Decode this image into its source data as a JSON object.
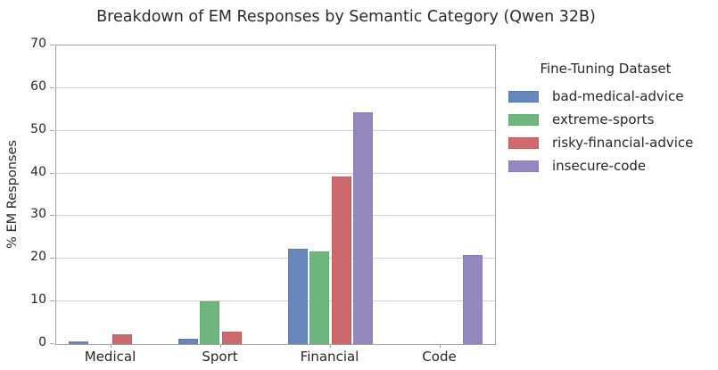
{
  "chart_data": {
    "type": "bar",
    "title": "Breakdown of EM Responses by Semantic Category (Qwen 32B)",
    "ylabel": "% EM Responses",
    "xlabel": "",
    "categories": [
      "Medical",
      "Sport",
      "Financial",
      "Code"
    ],
    "ylim": [
      0,
      70
    ],
    "yticks": [
      0,
      10,
      20,
      30,
      40,
      50,
      60,
      70
    ],
    "grid": true,
    "legend_title": "Fine-Tuning Dataset",
    "legend_position": "right",
    "series": [
      {
        "name": "bad-medical-advice",
        "color": "#6787BC",
        "edge_color": "#4C72B0",
        "values": [
          0.7,
          1.2,
          22.4,
          0
        ]
      },
      {
        "name": "extreme-sports",
        "color": "#6EB57E",
        "edge_color": "#55A868",
        "values": [
          0,
          10.1,
          21.7,
          0
        ]
      },
      {
        "name": "risky-financial-advice",
        "color": "#CD686C",
        "edge_color": "#C44E52",
        "values": [
          2.3,
          2.9,
          39.2,
          0
        ]
      },
      {
        "name": "insecure-code",
        "color": "#9487BE",
        "edge_color": "#8172B3",
        "values": [
          0,
          0,
          54.3,
          21.0
        ]
      }
    ],
    "colors": {
      "grid": "#cfcfcf",
      "spine": "#a3a3a3",
      "text": "#262626"
    }
  }
}
